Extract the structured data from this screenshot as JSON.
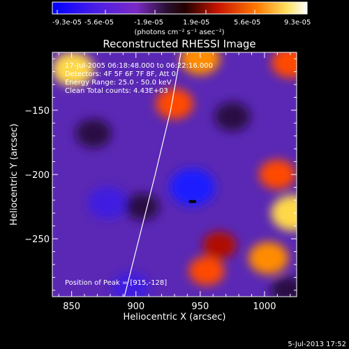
{
  "colorbar": {
    "ticks": [
      "-9.3e-05",
      "-5.6e-05",
      "-1.9e-05",
      "1.9e-05",
      "5.6e-05",
      "9.3e-05"
    ],
    "units_label": "(photons cm⁻² s⁻¹ asec⁻²)"
  },
  "chart_data": {
    "type": "heatmap",
    "title": "Reconstructed RHESSI Image",
    "xlabel": "Heliocentric X (arcsec)",
    "ylabel": "Heliocentric Y (arcsec)",
    "xlim": [
      835,
      1025
    ],
    "ylim": [
      -295,
      -105
    ],
    "x_ticks": [
      850,
      900,
      950,
      1000
    ],
    "y_ticks": [
      -150,
      -200,
      -250
    ],
    "value_range": [
      -9.3e-05,
      9.3e-05
    ],
    "colormap": "blue-purple-black-red-orange-yellow-white",
    "peak": [
      915,
      -128
    ],
    "limb_curve": [
      [
        891,
        -295
      ],
      [
        915,
        -200
      ],
      [
        927,
        -150
      ],
      [
        935,
        -105
      ]
    ],
    "blobs": [
      {
        "x": 851,
        "y": -118,
        "v": 0.7
      },
      {
        "x": 867,
        "y": -168,
        "v": -0.4
      },
      {
        "x": 878,
        "y": -222,
        "v": -0.6
      },
      {
        "x": 896,
        "y": -288,
        "v": -0.5
      },
      {
        "x": 905,
        "y": -225,
        "v": -0.3
      },
      {
        "x": 930,
        "y": -145,
        "v": 0.5
      },
      {
        "x": 944,
        "y": -210,
        "v": -0.9
      },
      {
        "x": 950,
        "y": -110,
        "v": 0.6
      },
      {
        "x": 955,
        "y": -275,
        "v": 0.4
      },
      {
        "x": 965,
        "y": -255,
        "v": 0.3
      },
      {
        "x": 975,
        "y": -155,
        "v": -0.4
      },
      {
        "x": 1003,
        "y": -265,
        "v": 0.6
      },
      {
        "x": 1010,
        "y": -200,
        "v": 0.45
      },
      {
        "x": 1018,
        "y": -290,
        "v": -0.3
      },
      {
        "x": 1020,
        "y": -113,
        "v": 0.5
      },
      {
        "x": 1022,
        "y": -230,
        "v": 0.8
      }
    ]
  },
  "annotations": {
    "time_range": "17-Jul-2005 06:18:48.000 to 06:22:16.000",
    "detectors": "Detectors: 4F 5F 6F 7F 8F, Att 0",
    "energy": "Energy Range: 25.0 - 50.0 keV",
    "clean": "Clean   Total counts: 4.43E+03",
    "peak": "Position of Peak = [915,-128]"
  },
  "footer": {
    "timestamp": "5-Jul-2013 17:52"
  }
}
